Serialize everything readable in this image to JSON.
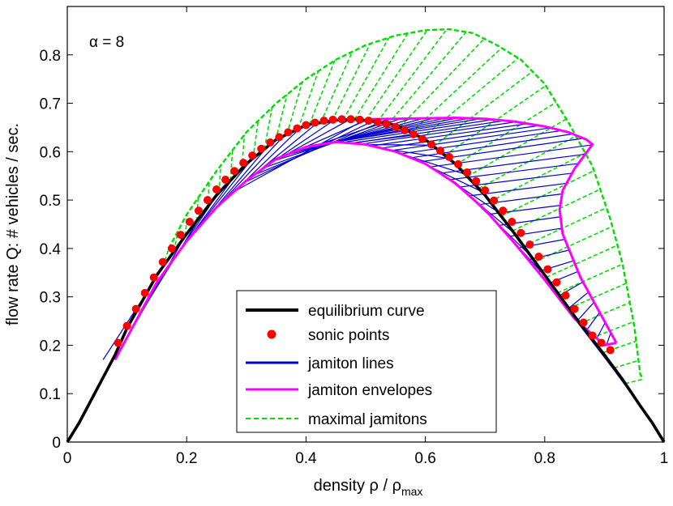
{
  "chart_data": {
    "type": "line",
    "title": "",
    "annotation": "α = 8",
    "xlabel": {
      "text": "density ρ / ρ",
      "sub": "max"
    },
    "ylabel": "flow rate Q: # vehicles / sec.",
    "xlim": [
      0,
      1
    ],
    "ylim": [
      0,
      0.9
    ],
    "grid": false,
    "xticks": [
      0,
      0.2,
      0.4,
      0.6,
      0.8,
      1
    ],
    "xtick_labels": [
      "0",
      "0.2",
      "0.4",
      "0.6",
      "0.8",
      "1"
    ],
    "yticks": [
      0,
      0.1,
      0.2,
      0.3,
      0.4,
      0.5,
      0.6,
      0.7,
      0.8
    ],
    "ytick_labels": [
      "0",
      "0.1",
      "0.2",
      "0.3",
      "0.4",
      "0.5",
      "0.6",
      "0.7",
      "0.8"
    ],
    "legend": {
      "placement": "bottom-center",
      "entries": [
        {
          "label": "equilibrium curve",
          "color": "#000000",
          "style": "solid-thick"
        },
        {
          "label": "sonic points",
          "color": "#ff0000",
          "style": "dot"
        },
        {
          "label": "jamiton lines",
          "color": "#0000cc",
          "style": "solid"
        },
        {
          "label": "jamiton envelopes",
          "color": "#ff00ff",
          "style": "solid"
        },
        {
          "label": "maximal jamitons",
          "color": "#00dd00",
          "style": "dashed"
        }
      ]
    },
    "series": [
      {
        "name": "equilibrium curve",
        "color": "#000000",
        "x": [
          0,
          0.02,
          0.05,
          0.08,
          0.1,
          0.15,
          0.2,
          0.25,
          0.3,
          0.35,
          0.4,
          0.45,
          0.48,
          0.5,
          0.55,
          0.6,
          0.65,
          0.7,
          0.75,
          0.8,
          0.85,
          0.9,
          0.93,
          0.96,
          0.98,
          1.0
        ],
        "y": [
          0,
          0.04,
          0.11,
          0.18,
          0.235,
          0.345,
          0.43,
          0.51,
          0.575,
          0.625,
          0.655,
          0.665,
          0.667,
          0.665,
          0.655,
          0.625,
          0.575,
          0.51,
          0.43,
          0.345,
          0.26,
          0.18,
          0.13,
          0.075,
          0.04,
          0
        ]
      },
      {
        "name": "sonic points",
        "color": "#ff0000",
        "x": [
          0.085,
          0.1,
          0.115,
          0.13,
          0.145,
          0.16,
          0.175,
          0.19,
          0.205,
          0.22,
          0.235,
          0.25,
          0.265,
          0.28,
          0.295,
          0.31,
          0.325,
          0.34,
          0.355,
          0.37,
          0.385,
          0.4,
          0.415,
          0.43,
          0.445,
          0.46,
          0.475,
          0.49,
          0.505,
          0.52,
          0.535,
          0.55,
          0.565,
          0.58,
          0.595,
          0.61,
          0.625,
          0.64,
          0.655,
          0.67,
          0.685,
          0.7,
          0.715,
          0.73,
          0.745,
          0.76,
          0.775,
          0.79,
          0.805,
          0.82,
          0.835,
          0.85,
          0.865,
          0.88,
          0.895,
          0.91
        ],
        "y": [
          0.205,
          0.24,
          0.275,
          0.308,
          0.34,
          0.372,
          0.4,
          0.428,
          0.455,
          0.478,
          0.5,
          0.522,
          0.542,
          0.56,
          0.577,
          0.592,
          0.606,
          0.619,
          0.63,
          0.64,
          0.648,
          0.655,
          0.66,
          0.664,
          0.666,
          0.667,
          0.667,
          0.666,
          0.664,
          0.661,
          0.657,
          0.651,
          0.644,
          0.636,
          0.626,
          0.615,
          0.602,
          0.589,
          0.574,
          0.557,
          0.539,
          0.52,
          0.499,
          0.478,
          0.455,
          0.432,
          0.408,
          0.383,
          0.357,
          0.33,
          0.303,
          0.275,
          0.247,
          0.22,
          0.205,
          0.19
        ]
      },
      {
        "name": "jamiton envelopes",
        "color": "#ff00ff",
        "lower_x": [
          0.08,
          0.15,
          0.2,
          0.25,
          0.3,
          0.35,
          0.4,
          0.45,
          0.5,
          0.55,
          0.6,
          0.65,
          0.7,
          0.75,
          0.8,
          0.85,
          0.9,
          0.92
        ],
        "lower_y": [
          0.17,
          0.33,
          0.415,
          0.485,
          0.54,
          0.585,
          0.61,
          0.62,
          0.615,
          0.6,
          0.575,
          0.535,
          0.48,
          0.41,
          0.335,
          0.255,
          0.2,
          0.205
        ],
        "upper_x": [
          0.5,
          0.55,
          0.6,
          0.65,
          0.7,
          0.75,
          0.8,
          0.84,
          0.87,
          0.88,
          0.85,
          0.83,
          0.825,
          0.83,
          0.86,
          0.9,
          0.92
        ],
        "upper_y": [
          0.667,
          0.668,
          0.669,
          0.67,
          0.668,
          0.662,
          0.652,
          0.64,
          0.625,
          0.615,
          0.565,
          0.52,
          0.48,
          0.43,
          0.34,
          0.25,
          0.205
        ]
      },
      {
        "name": "maximal jamitons",
        "color": "#00dd00",
        "envelope_x": [
          0.17,
          0.2,
          0.25,
          0.3,
          0.35,
          0.4,
          0.45,
          0.5,
          0.55,
          0.6,
          0.64,
          0.68,
          0.72,
          0.76,
          0.8,
          0.84,
          0.88,
          0.91,
          0.93,
          0.95,
          0.96,
          0.965
        ],
        "envelope_y": [
          0.4,
          0.47,
          0.56,
          0.64,
          0.7,
          0.75,
          0.79,
          0.82,
          0.84,
          0.851,
          0.853,
          0.845,
          0.82,
          0.79,
          0.74,
          0.66,
          0.57,
          0.46,
          0.37,
          0.24,
          0.14,
          0.13
        ]
      }
    ]
  }
}
